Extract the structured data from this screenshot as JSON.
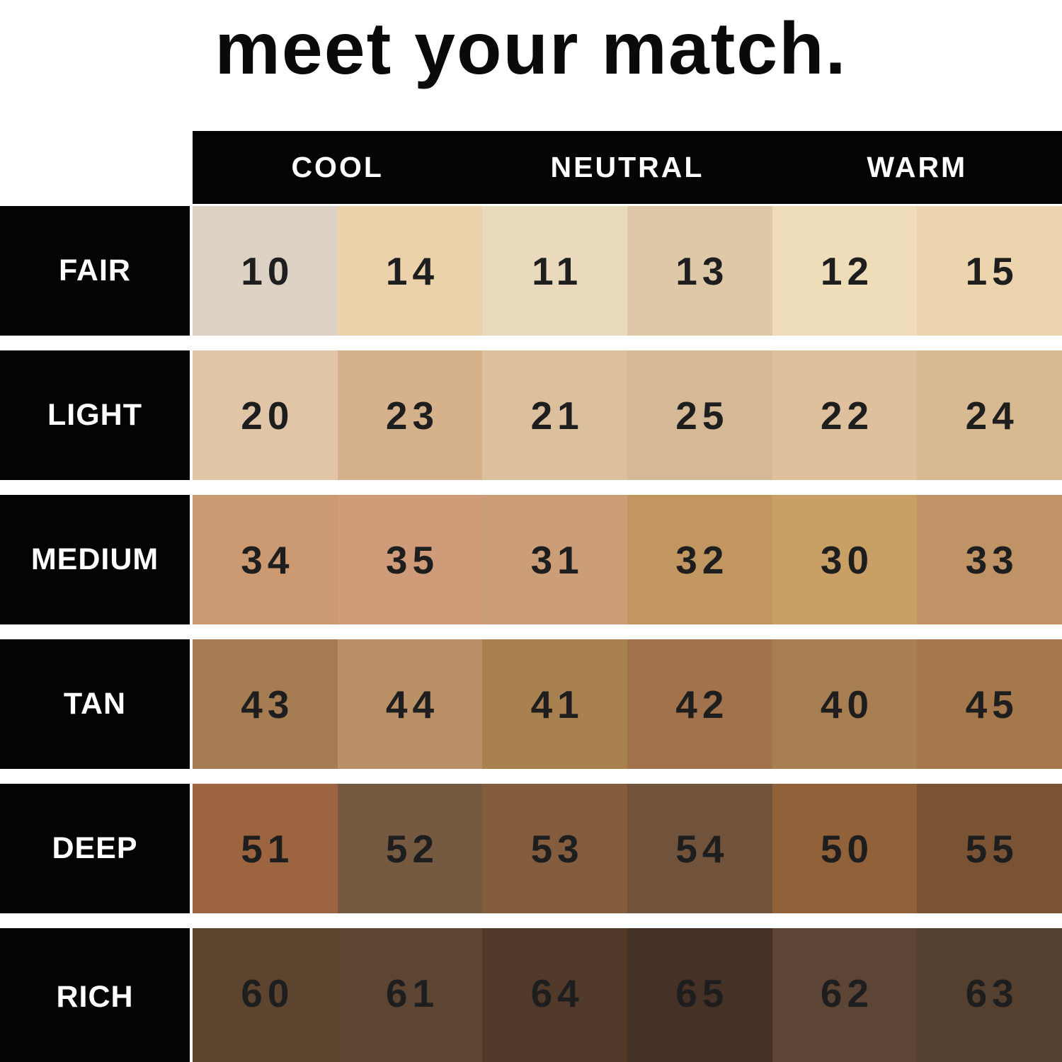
{
  "chart_data": {
    "type": "table",
    "title": "meet your match.",
    "column_groups": [
      "COOL",
      "NEUTRAL",
      "WARM"
    ],
    "row_labels": [
      "FAIR",
      "LIGHT",
      "MEDIUM",
      "TAN",
      "DEEP",
      "RICH"
    ],
    "values": [
      [
        10,
        14,
        11,
        13,
        12,
        15
      ],
      [
        20,
        23,
        21,
        25,
        22,
        24
      ],
      [
        34,
        35,
        31,
        32,
        30,
        33
      ],
      [
        43,
        44,
        41,
        42,
        40,
        45
      ],
      [
        51,
        52,
        53,
        54,
        50,
        55
      ],
      [
        60,
        61,
        64,
        65,
        62,
        63
      ]
    ],
    "rows": [
      {
        "label": "FAIR",
        "cells": [
          {
            "value": "10",
            "color": "#ddd1c4"
          },
          {
            "value": "14",
            "color": "#ecd2ab"
          },
          {
            "value": "11",
            "color": "#e9dabd"
          },
          {
            "value": "13",
            "color": "#dfc8a8"
          },
          {
            "value": "12",
            "color": "#efdcb8"
          },
          {
            "value": "15",
            "color": "#ecd5ae"
          }
        ]
      },
      {
        "label": "LIGHT",
        "cells": [
          {
            "value": "20",
            "color": "#e0c5a6"
          },
          {
            "value": "23",
            "color": "#d5b28c"
          },
          {
            "value": "21",
            "color": "#dcbf9d"
          },
          {
            "value": "25",
            "color": "#d5b996"
          },
          {
            "value": "22",
            "color": "#dec09c"
          },
          {
            "value": "24",
            "color": "#d8ba92"
          }
        ]
      },
      {
        "label": "MEDIUM",
        "cells": [
          {
            "value": "34",
            "color": "#cc9a72"
          },
          {
            "value": "35",
            "color": "#cf9b79"
          },
          {
            "value": "31",
            "color": "#cc9e78"
          },
          {
            "value": "32",
            "color": "#c29660"
          },
          {
            "value": "30",
            "color": "#c8a065"
          },
          {
            "value": "33",
            "color": "#bf9366"
          }
        ]
      },
      {
        "label": "TAN",
        "cells": [
          {
            "value": "43",
            "color": "#a67c52"
          },
          {
            "value": "44",
            "color": "#ba9066"
          },
          {
            "value": "41",
            "color": "#a98050"
          },
          {
            "value": "42",
            "color": "#a1724b"
          },
          {
            "value": "40",
            "color": "#a87f53"
          },
          {
            "value": "45",
            "color": "#a5784c"
          }
        ]
      },
      {
        "label": "DEEP",
        "cells": [
          {
            "value": "51",
            "color": "#9d6440"
          },
          {
            "value": "52",
            "color": "#755941"
          },
          {
            "value": "53",
            "color": "#845c3e"
          },
          {
            "value": "54",
            "color": "#71533c"
          },
          {
            "value": "50",
            "color": "#916139"
          },
          {
            "value": "55",
            "color": "#795334"
          }
        ]
      },
      {
        "label": "RICH",
        "cells": [
          {
            "value": "60",
            "color": "#5c442f"
          },
          {
            "value": "61",
            "color": "#5d4533"
          },
          {
            "value": "64",
            "color": "#523a2b"
          },
          {
            "value": "65",
            "color": "#463127"
          },
          {
            "value": "62",
            "color": "#5d4535"
          },
          {
            "value": "63",
            "color": "#553f2f"
          }
        ]
      }
    ],
    "colors": {
      "background": "#ffffff",
      "bar": "#040404",
      "header_text": "#ffffff",
      "number_text": "#1e1e1e"
    },
    "legend_position": "none",
    "grid": false
  }
}
